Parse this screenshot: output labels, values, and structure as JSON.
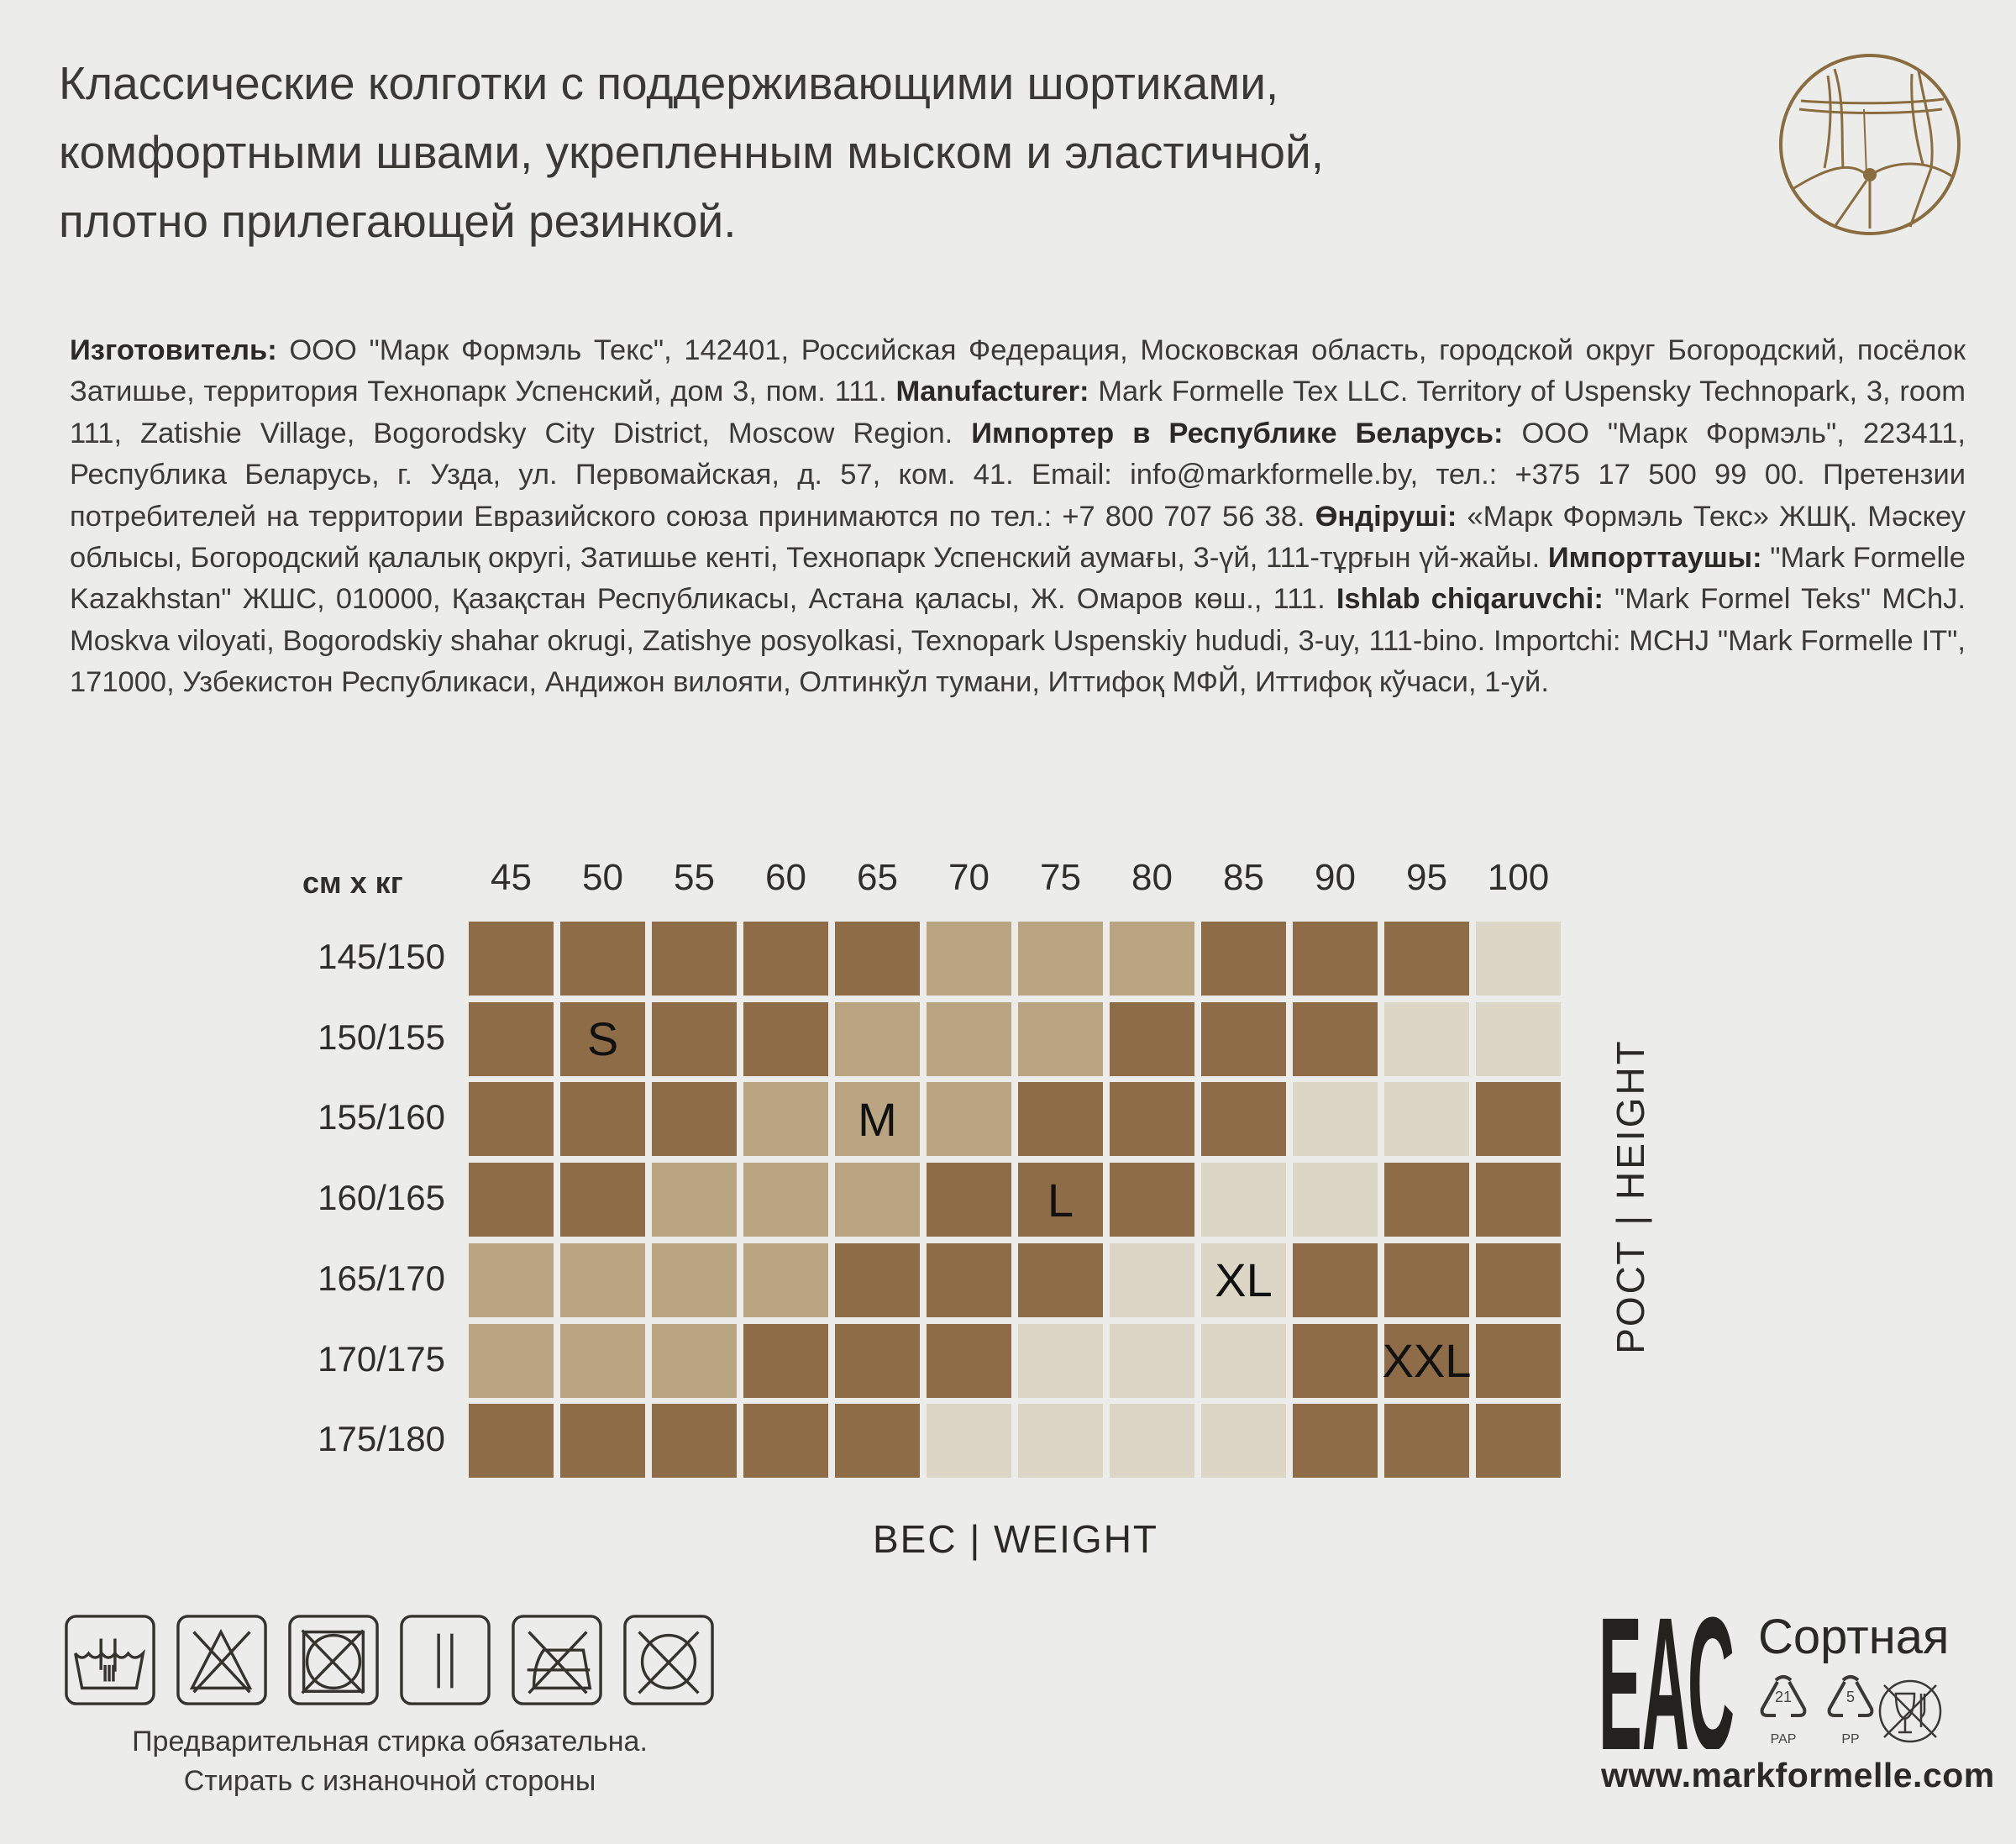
{
  "headline": [
    "Классические колготки с поддерживающими шортиками,",
    "комфортными швами, укрепленным мыском и эластичной,",
    "плотно прилегающей резинкой."
  ],
  "badge_icon": "support-briefs-icon",
  "info_segments": [
    {
      "t": "Изготовитель:",
      "b": true
    },
    {
      "t": " ООО \"Марк Формэль Текс\", 142401, Российская Федерация, Московская область, городской округ Богородский, посёлок Затишье, территория Технопарк Успенский, дом 3, пом. 111. ",
      "b": false
    },
    {
      "t": "Manufacturer:",
      "b": true
    },
    {
      "t": " Mark Formelle Tex LLC. Territory of Uspensky Technopark, 3, room 111, Zatishie Village, Bogorodsky City District, Moscow Region. ",
      "b": false
    },
    {
      "t": "Импортер в Республике Беларусь:",
      "b": true
    },
    {
      "t": " ООО \"Марк Формэль\", 223411, Республика Беларусь, г. Узда, ул. Первомайская, д. 57, ком. 41. Email: info@markformelle.by, тел.: +375 17 500 99 00. Претензии потребителей на территории Евразийского союза принимаются по тел.: +7 800 707 56 38. ",
      "b": false
    },
    {
      "t": "Өндіруші:",
      "b": true
    },
    {
      "t": " «Марк Формэль Текс» ЖШҚ. Мәскеу облысы, Богородский қалалық округі, Затишье кенті, Технопарк Успенский аумағы, 3-үй, 111-тұрғын үй-жайы. ",
      "b": false
    },
    {
      "t": "Импорттаушы:",
      "b": true
    },
    {
      "t": " \"Mark Formelle Kazakhstan\" ЖШС, 010000, Қазақстан Республикасы, Астана қаласы, Ж. Омаров көш., 111. ",
      "b": false
    },
    {
      "t": "Ishlab chiqaruvchi:",
      "b": true
    },
    {
      "t": " \"Mark Formel Teks\" MChJ. Moskva viloyati, Bogorodskiy shahar okrugi, Zatishye posyolkasi, Texnopark Uspenskiy hududi, 3-uy, 111-bino. Importchi: MCHJ \"Mark Formelle IT\", 171000, Узбекистон Республикаси, Андижон вилояти, Олтинкўл тумани, Иттифоқ МФЙ, Иттифоқ кўчаси, 1-уй.",
      "b": false
    }
  ],
  "size_chart": {
    "corner_label": "см x кг",
    "weights": [
      "45",
      "50",
      "55",
      "60",
      "65",
      "70",
      "75",
      "80",
      "85",
      "90",
      "95",
      "100"
    ],
    "heights": [
      "145/150",
      "150/155",
      "155/160",
      "160/165",
      "165/170",
      "170/175",
      "175/180"
    ],
    "shades": {
      "D": "#8d6c47",
      "M": "#baa582",
      "L": "#dcd6c6"
    },
    "cells": [
      "DDDDDMMMDDDL",
      "DDDDMMMDDDLL",
      "DDDMMMDDDLLD",
      "DDMMMDDDLLDD",
      "MMMMDDDLLDDD",
      "MMMDDDLLLDDD",
      "DDDDDLLLLDDD"
    ],
    "size_marks": [
      {
        "label": "S",
        "row": 1,
        "col": 1
      },
      {
        "label": "M",
        "row": 2,
        "col": 4
      },
      {
        "label": "L",
        "row": 3,
        "col": 6
      },
      {
        "label": "XL",
        "row": 4,
        "col": 8
      },
      {
        "label": "XXL",
        "row": 5,
        "col": 10
      }
    ],
    "height_axis": "РОСТ | HEIGHT",
    "weight_axis": "ВЕС | WEIGHT"
  },
  "care_icons": [
    "hand-wash-icon",
    "do-not-bleach-icon",
    "do-not-tumble-dry-icon",
    "line-dry-icon",
    "do-not-iron-icon",
    "do-not-dry-clean-icon"
  ],
  "care_text": [
    "Предварительная стирка обязательна.",
    "Стирать с изнаночной стороны"
  ],
  "eac_mark": "ЕАС",
  "grade": "Сортная",
  "recycling": [
    {
      "code": "21",
      "label": "PAP"
    },
    {
      "code": "5",
      "label": "PP"
    }
  ],
  "not_food_icon": "not-for-food-icon",
  "url": "www.markformelle.com",
  "accent_color": "#8a6d3f"
}
